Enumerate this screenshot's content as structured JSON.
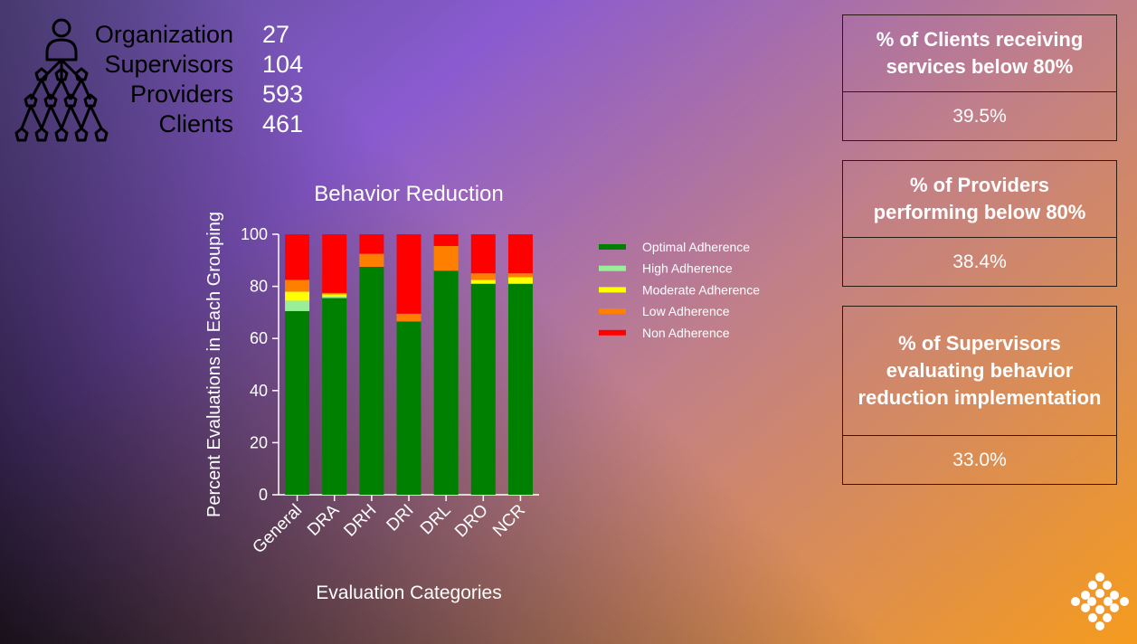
{
  "summary": {
    "rows": [
      {
        "label": "Organization",
        "value": "27"
      },
      {
        "label": "Supervisors",
        "value": "104"
      },
      {
        "label": "Providers",
        "value": "593"
      },
      {
        "label": "Clients",
        "value": "461"
      }
    ]
  },
  "cards": [
    {
      "title": "% of Clients receiving services below 80%",
      "value": "39.5%"
    },
    {
      "title": "% of Providers performing below 80%",
      "value": "38.4%"
    },
    {
      "title": "% of Supervisors evaluating behavior reduction implementation",
      "value": "33.0%"
    }
  ],
  "chart_data": {
    "type": "bar",
    "stacked": true,
    "title": "Behavior Reduction",
    "xlabel": "Evaluation Categories",
    "ylabel": "Percent Evaluations in  Each Grouping",
    "ylim": [
      0,
      100
    ],
    "yticks": [
      "0",
      "20",
      "40",
      "60",
      "80",
      "100"
    ],
    "categories": [
      "General",
      "DRA",
      "DRH",
      "DRI",
      "DRL",
      "DRO",
      "NCR"
    ],
    "series": [
      {
        "name": "Optimal Adherence",
        "color": "#008000",
        "values": [
          70.5,
          75.5,
          87.5,
          66.5,
          86,
          81,
          81
        ]
      },
      {
        "name": "High Adherence",
        "color": "#99ee99",
        "values": [
          4,
          0.5,
          0,
          0,
          0,
          0,
          0
        ]
      },
      {
        "name": "Moderate Adherence",
        "color": "#ffff00",
        "values": [
          3.5,
          1,
          0,
          0,
          0,
          1.5,
          2.5
        ]
      },
      {
        "name": "Low Adherence",
        "color": "#ff8000",
        "values": [
          4.5,
          0.5,
          5,
          3,
          9.5,
          2.5,
          1.5
        ]
      },
      {
        "name": "Non Adherence",
        "color": "#ff0000",
        "values": [
          17.5,
          22.5,
          7.5,
          30.5,
          4.5,
          15,
          15
        ]
      }
    ],
    "legend_position": "right",
    "grid": false
  }
}
